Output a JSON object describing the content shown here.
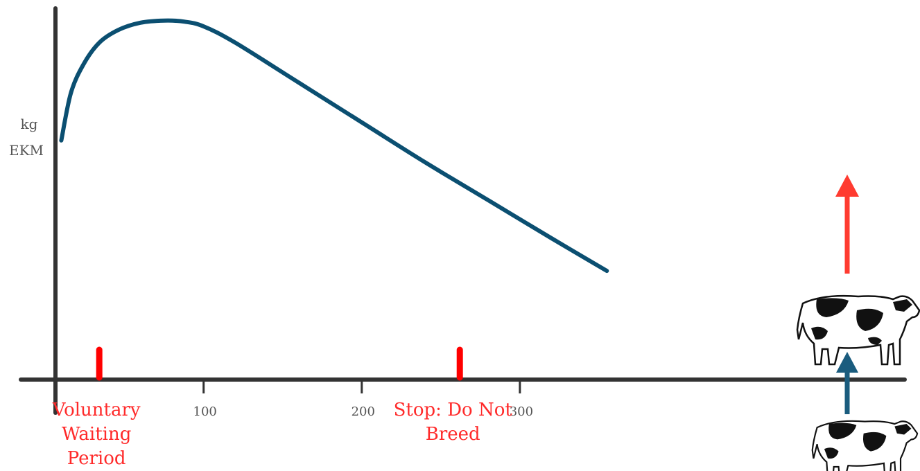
{
  "chart_data": {
    "type": "line",
    "title": "",
    "ylabel": [
      "kg",
      "EKM"
    ],
    "xlabel": "",
    "x_ticks": [
      100,
      200,
      300
    ],
    "xlim": [
      -20,
      425
    ],
    "ylim": [
      0,
      100
    ],
    "grid": false,
    "series": [
      {
        "color": "#0b4f71",
        "x": [
          10,
          16,
          24,
          34,
          46,
          60,
          75,
          88,
          100,
          120,
          160,
          200,
          240,
          280,
          320,
          355
        ],
        "y": [
          66,
          79,
          87,
          93,
          96.5,
          98.5,
          99.1,
          98.8,
          97.5,
          93,
          82,
          71,
          60,
          49.5,
          39,
          30
        ]
      }
    ],
    "markers": [
      {
        "x": 34,
        "color": "#ff0000",
        "label": [
          "Voluntary",
          "Waiting",
          "Period"
        ]
      },
      {
        "x": 262,
        "color": "#ff0000",
        "label": [
          "Stop: Do Not",
          "Breed"
        ]
      }
    ]
  },
  "icons": {
    "cow_top": "holstein-cow-icon",
    "cow_bottom": "holstein-cow-icon",
    "arrow_up_red": "arrow-up-icon",
    "arrow_up_blue": "arrow-up-icon",
    "arrow_red_color": "#ff3b30",
    "arrow_blue_color": "#1a5c7e"
  }
}
